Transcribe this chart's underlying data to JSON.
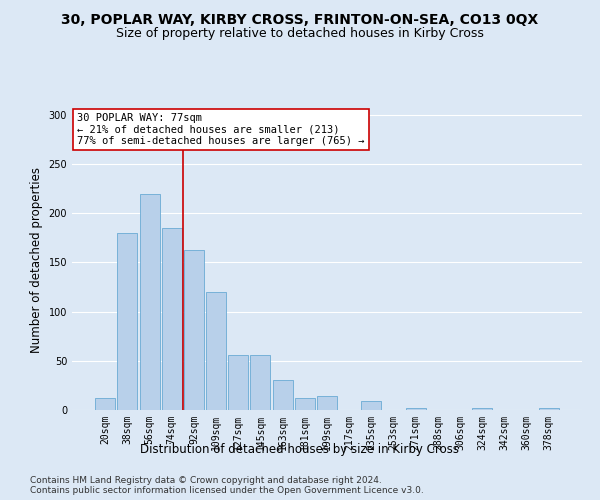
{
  "title": "30, POPLAR WAY, KIRBY CROSS, FRINTON-ON-SEA, CO13 0QX",
  "subtitle": "Size of property relative to detached houses in Kirby Cross",
  "xlabel": "Distribution of detached houses by size in Kirby Cross",
  "ylabel": "Number of detached properties",
  "categories": [
    "20sqm",
    "38sqm",
    "56sqm",
    "74sqm",
    "92sqm",
    "109sqm",
    "127sqm",
    "145sqm",
    "163sqm",
    "181sqm",
    "199sqm",
    "217sqm",
    "235sqm",
    "253sqm",
    "271sqm",
    "288sqm",
    "306sqm",
    "324sqm",
    "342sqm",
    "360sqm",
    "378sqm"
  ],
  "values": [
    12,
    180,
    220,
    185,
    163,
    120,
    56,
    56,
    30,
    12,
    14,
    0,
    9,
    0,
    2,
    0,
    0,
    2,
    0,
    0,
    2
  ],
  "bar_color": "#b8d0ea",
  "bar_edge_color": "#6aaad4",
  "vline_x": 3.5,
  "vline_color": "#cc0000",
  "annotation_text": "30 POPLAR WAY: 77sqm\n← 21% of detached houses are smaller (213)\n77% of semi-detached houses are larger (765) →",
  "annotation_box_color": "#ffffff",
  "annotation_box_edge_color": "#cc0000",
  "ylim": [
    0,
    305
  ],
  "yticks": [
    0,
    50,
    100,
    150,
    200,
    250,
    300
  ],
  "footer_text": "Contains HM Land Registry data © Crown copyright and database right 2024.\nContains public sector information licensed under the Open Government Licence v3.0.",
  "background_color": "#dce8f5",
  "plot_background_color": "#dce8f5",
  "grid_color": "#ffffff",
  "title_fontsize": 10,
  "subtitle_fontsize": 9,
  "xlabel_fontsize": 8.5,
  "ylabel_fontsize": 8.5,
  "tick_fontsize": 7,
  "footer_fontsize": 6.5
}
